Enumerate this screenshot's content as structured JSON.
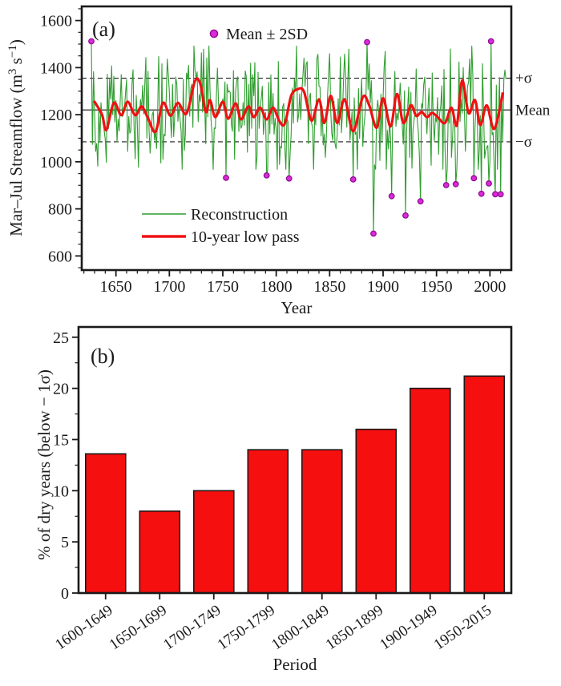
{
  "chart_data": [
    {
      "type": "line",
      "panel_label": "(a)",
      "xlabel": "Year",
      "ylabel": "Mar–Jul Streamflow (m³ s⁻¹)",
      "ylabel_parts": [
        {
          "t": "Mar–Jul Streamflow (m"
        },
        {
          "t": "3",
          "sup": true
        },
        {
          "t": " s"
        },
        {
          "t": "−1",
          "sup": true
        },
        {
          "t": ")"
        }
      ],
      "xlim": [
        1618,
        2020
      ],
      "ylim": [
        540,
        1660
      ],
      "x_major_ticks": [
        1650,
        1700,
        1750,
        1800,
        1850,
        1900,
        1950,
        2000
      ],
      "x_minor_step": 10,
      "y_major_ticks": [
        600,
        800,
        1000,
        1200,
        1400,
        1600
      ],
      "y_minor_step": 50,
      "grid": false,
      "reference_lines": [
        {
          "label": "+σ",
          "value": 1355,
          "style": "dashed",
          "color": "#1a1a1a"
        },
        {
          "label": "Mean",
          "value": 1220,
          "style": "solid",
          "color": "#4d4d4d"
        },
        {
          "label": "−σ",
          "value": 1085,
          "style": "dashed",
          "color": "#1a1a1a"
        }
      ],
      "legend_position": "lower-center-left",
      "legend": [
        {
          "label": "Reconstruction",
          "color": "#2f9e2f"
        },
        {
          "label": "10-year low pass",
          "color": "#ee1111"
        }
      ],
      "scatter_legend": {
        "label": "Mean ± 2SD",
        "color": "#d92bd9"
      },
      "series": [
        {
          "name": "Reconstruction",
          "color": "#2f9e2f",
          "kind": "annual",
          "start_year": 1627,
          "end_year": 2015,
          "noise_amplitude": 310,
          "seed": 3,
          "clamp": [
            968,
            1492
          ]
        },
        {
          "name": "10-year low pass",
          "color": "#ee1111",
          "kind": "smoothed",
          "control_points": [
            [
              1630,
              1255
            ],
            [
              1637,
              1200
            ],
            [
              1641,
              1135
            ],
            [
              1648,
              1250
            ],
            [
              1655,
              1198
            ],
            [
              1661,
              1255
            ],
            [
              1668,
              1198
            ],
            [
              1674,
              1235
            ],
            [
              1680,
              1185
            ],
            [
              1687,
              1128
            ],
            [
              1694,
              1250
            ],
            [
              1701,
              1196
            ],
            [
              1708,
              1250
            ],
            [
              1716,
              1205
            ],
            [
              1724,
              1343
            ],
            [
              1729,
              1330
            ],
            [
              1734,
              1212
            ],
            [
              1738,
              1262
            ],
            [
              1743,
              1190
            ],
            [
              1750,
              1255
            ],
            [
              1755,
              1183
            ],
            [
              1762,
              1248
            ],
            [
              1767,
              1180
            ],
            [
              1774,
              1235
            ],
            [
              1779,
              1190
            ],
            [
              1785,
              1230
            ],
            [
              1791,
              1180
            ],
            [
              1797,
              1230
            ],
            [
              1803,
              1172
            ],
            [
              1808,
              1162
            ],
            [
              1814,
              1280
            ],
            [
              1820,
              1308
            ],
            [
              1826,
              1298
            ],
            [
              1833,
              1175
            ],
            [
              1840,
              1265
            ],
            [
              1845,
              1165
            ],
            [
              1851,
              1280
            ],
            [
              1857,
              1165
            ],
            [
              1864,
              1265
            ],
            [
              1872,
              1130
            ],
            [
              1881,
              1275
            ],
            [
              1887,
              1240
            ],
            [
              1894,
              1145
            ],
            [
              1900,
              1270
            ],
            [
              1907,
              1150
            ],
            [
              1913,
              1288
            ],
            [
              1919,
              1165
            ],
            [
              1926,
              1240
            ],
            [
              1931,
              1195
            ],
            [
              1936,
              1212
            ],
            [
              1941,
              1190
            ],
            [
              1946,
              1208
            ],
            [
              1951,
              1190
            ],
            [
              1958,
              1165
            ],
            [
              1964,
              1230
            ],
            [
              1969,
              1155
            ],
            [
              1974,
              1345
            ],
            [
              1980,
              1207
            ],
            [
              1986,
              1262
            ],
            [
              1991,
              1156
            ],
            [
              1997,
              1240
            ],
            [
              2004,
              1140
            ],
            [
              2012,
              1290
            ]
          ]
        }
      ],
      "extreme_points": {
        "name": "Mean ± 2SD",
        "color": "#d92bd9",
        "edge_color": "#8e0b8e",
        "points": [
          [
            1627,
            1512
          ],
          [
            1753,
            932
          ],
          [
            1791,
            942
          ],
          [
            1812,
            929
          ],
          [
            1872,
            925
          ],
          [
            1885,
            1508
          ],
          [
            1891,
            695
          ],
          [
            1908,
            854
          ],
          [
            1921,
            772
          ],
          [
            1935,
            832
          ],
          [
            1959,
            901
          ],
          [
            1968,
            905
          ],
          [
            1985,
            930
          ],
          [
            1992,
            864
          ],
          [
            1999,
            908
          ],
          [
            2001,
            1512
          ],
          [
            2005,
            862
          ],
          [
            2010,
            862
          ]
        ]
      }
    },
    {
      "type": "bar",
      "panel_label": "(b)",
      "xlabel": "Period",
      "ylabel": "% of dry years (below − 1σ)",
      "categories": [
        "1600-1649",
        "1650-1699",
        "1700-1749",
        "1750-1799",
        "1800-1849",
        "1850-1899",
        "1900-1949",
        "1950-2015"
      ],
      "values": [
        13.6,
        8,
        10,
        14,
        14,
        16,
        20,
        21.2
      ],
      "ylim": [
        0,
        26
      ],
      "y_major_ticks": [
        0,
        5,
        10,
        15,
        20,
        25
      ],
      "y_minor_step": 2.5,
      "grid": false,
      "bar_color": "#f50f0f",
      "bar_edge_color": "#1a1a1a"
    }
  ]
}
